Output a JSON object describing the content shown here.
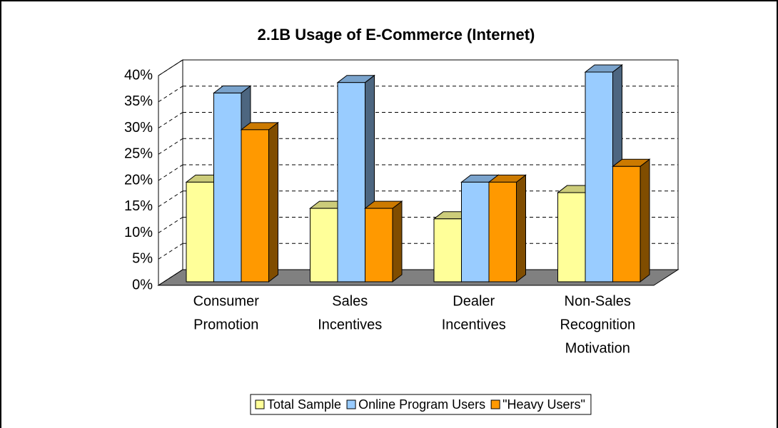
{
  "chart_data": {
    "type": "bar3d",
    "title": "2.1B Usage of E-Commerce (Internet)",
    "categories": [
      [
        "Consumer",
        "Promotion"
      ],
      [
        "Sales",
        "Incentives"
      ],
      [
        "Dealer",
        "Incentives"
      ],
      [
        "Non-Sales",
        "Recognition",
        "Motivation"
      ]
    ],
    "series": [
      {
        "name": "Total Sample",
        "color": "#ffff99",
        "values": [
          19,
          14,
          12,
          17
        ]
      },
      {
        "name": "Online Program Users",
        "color": "#99ccff",
        "values": [
          36,
          38,
          19,
          40
        ]
      },
      {
        "name": "\"Heavy Users\"",
        "color": "#ff9900",
        "values": [
          29,
          14,
          19,
          22
        ]
      }
    ],
    "ylim": [
      0,
      40
    ],
    "yticks": [
      {
        "value": 0,
        "label": "0%"
      },
      {
        "value": 5,
        "label": "5%"
      },
      {
        "value": 10,
        "label": "10%"
      },
      {
        "value": 15,
        "label": "15%"
      },
      {
        "value": 20,
        "label": "20%"
      },
      {
        "value": 25,
        "label": "25%"
      },
      {
        "value": 30,
        "label": "30%"
      },
      {
        "value": 35,
        "label": "35%"
      },
      {
        "value": 40,
        "label": "40%"
      }
    ],
    "grid": true,
    "legend": "bottom"
  }
}
